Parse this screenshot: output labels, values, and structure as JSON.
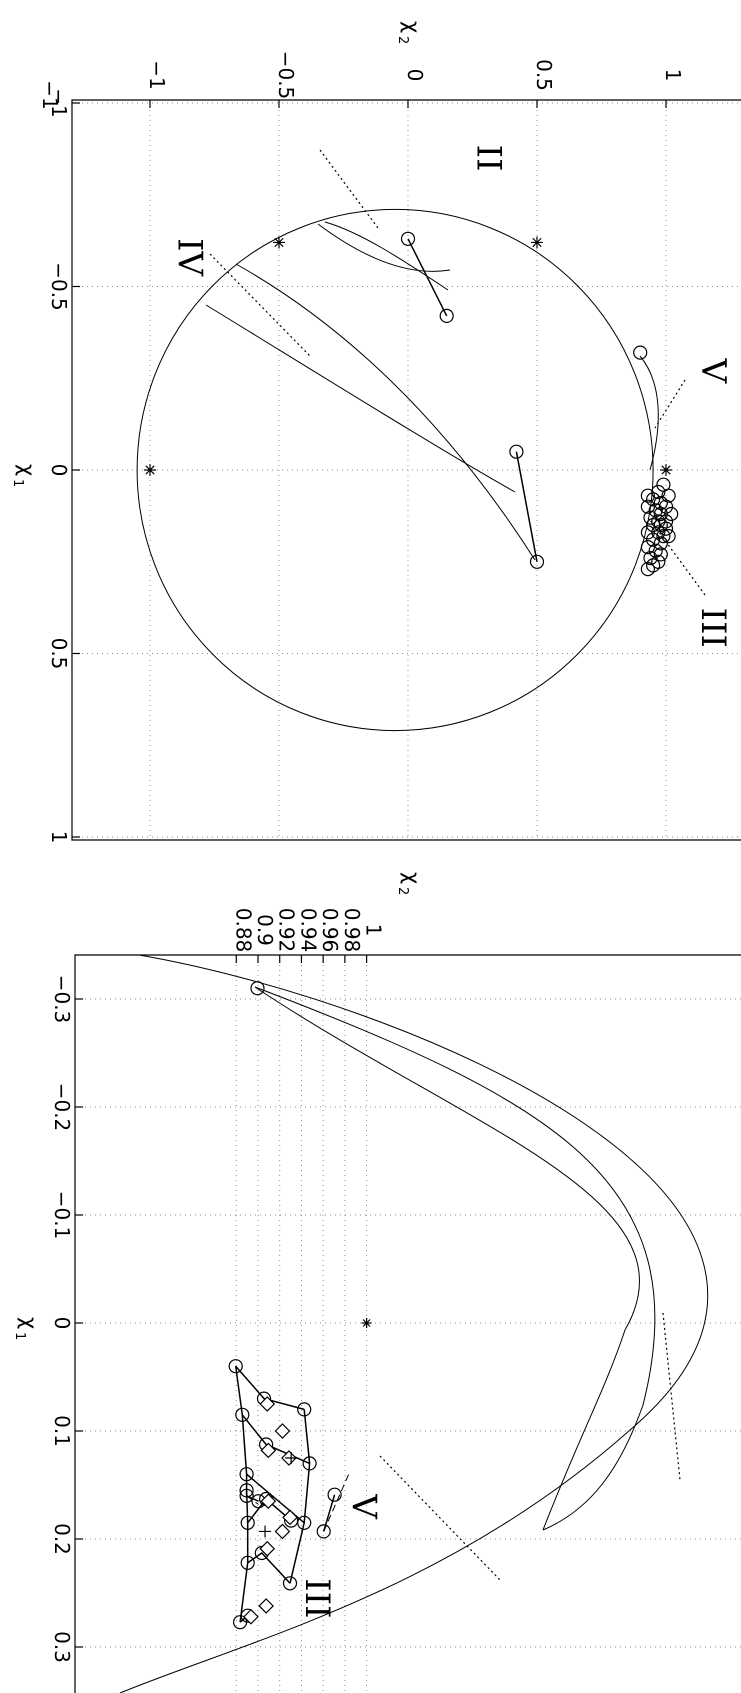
{
  "chart_data": [
    {
      "type": "line",
      "title": "",
      "xlabel_main": "χ",
      "xlabel_sub": "1",
      "ylabel_main": "χ",
      "ylabel_sub": "2",
      "xlim": [
        -1,
        1
      ],
      "ylim": [
        -1.2,
        1.3
      ],
      "x_ticks": [
        -1,
        -0.5,
        0,
        0.5,
        1
      ],
      "x_tick_labels": [
        "−1",
        "−0.5",
        "0",
        "0.5",
        "1"
      ],
      "y_ticks": [
        -1,
        -0.5,
        0,
        0.5,
        1
      ],
      "y_tick_labels": [
        "−1",
        "−0.5",
        "0",
        "0.5",
        "1"
      ],
      "y_axis_end_label": "−1",
      "grid": true,
      "circle": {
        "center": [
          0,
          -0.05
        ],
        "radius": 0.71
      },
      "star_points": [
        [
          -0.62,
          0.5
        ],
        [
          -0.62,
          -0.5
        ],
        [
          0,
          -1
        ],
        [
          0,
          1
        ]
      ],
      "annotations": [
        {
          "label": "II",
          "x": -0.85,
          "y": 0.27
        },
        {
          "label": "IV",
          "x": -0.58,
          "y": -0.89
        },
        {
          "label": "V",
          "x": -0.27,
          "y": 1.14
        },
        {
          "label": "III",
          "x": 0.43,
          "y": 1.14
        }
      ],
      "series": [
        {
          "values": [
            [
              -0.63,
              0.0
            ],
            [
              -0.42,
              0.15
            ]
          ]
        },
        {
          "values": [
            [
              -0.05,
              0.42
            ],
            [
              0.25,
              0.5
            ]
          ]
        },
        {
          "values": [
            [
              -0.32,
              0.9
            ]
          ]
        },
        {
          "values": [
            [
              0.04,
              0.99
            ],
            [
              0.06,
              0.97
            ],
            [
              0.07,
              0.93
            ],
            [
              0.07,
              1.01
            ],
            [
              0.08,
              0.95
            ],
            [
              0.09,
              0.98
            ],
            [
              0.1,
              0.93
            ],
            [
              0.1,
              1.0
            ],
            [
              0.11,
              0.96
            ],
            [
              0.12,
              0.98
            ],
            [
              0.12,
              1.02
            ],
            [
              0.13,
              0.94
            ],
            [
              0.14,
              0.97
            ],
            [
              0.14,
              1.0
            ],
            [
              0.15,
              0.95
            ],
            [
              0.15,
              0.98
            ],
            [
              0.16,
              1.0
            ],
            [
              0.17,
              0.93
            ],
            [
              0.17,
              0.97
            ],
            [
              0.18,
              0.99
            ],
            [
              0.18,
              1.01
            ],
            [
              0.19,
              0.95
            ],
            [
              0.2,
              0.98
            ],
            [
              0.21,
              0.93
            ],
            [
              0.22,
              0.96
            ],
            [
              0.23,
              0.98
            ],
            [
              0.24,
              0.94
            ],
            [
              0.25,
              0.97
            ],
            [
              0.26,
              0.95
            ],
            [
              0.27,
              0.93
            ]
          ]
        }
      ]
    },
    {
      "type": "line",
      "title": "",
      "xlabel_main": "χ",
      "xlabel_sub": "1",
      "ylabel_main": "χ",
      "ylabel_sub": "2",
      "xlim": [
        -0.34,
        0.34
      ],
      "ylim": [
        0.8765,
        1.002
      ],
      "x_ticks": [
        -0.3,
        -0.2,
        -0.1,
        0,
        0.1,
        0.2,
        0.3
      ],
      "x_tick_labels": [
        "−0.3",
        "−0.2",
        "−0.1",
        "0",
        "0.1",
        "0.2",
        "0.3"
      ],
      "y_ticks": [
        0.88,
        0.9,
        0.92,
        0.94,
        0.96,
        0.98,
        1
      ],
      "y_tick_labels": [
        "0.88",
        "0.9",
        "0.92",
        "0.94",
        "0.96",
        "0.98",
        "1"
      ],
      "grid": true,
      "annotations": [
        {
          "label": "V",
          "x": 0.17,
          "y": 0.987
        },
        {
          "label": "III",
          "x": 0.255,
          "y": 0.944
        }
      ],
      "series": [
        {
          "values": [
            [
              0.04,
              0.8795
            ],
            [
              0.07,
              0.9055
            ],
            [
              0.08,
              0.9425
            ]
          ]
        },
        {
          "values": [
            [
              0.085,
              0.8855
            ],
            [
              0.1125,
              0.9075
            ],
            [
              0.13,
              0.9475
            ]
          ]
        },
        {
          "values": [
            [
              0.14,
              0.8895
            ],
            [
              0.185,
              0.9425
            ]
          ]
        },
        {
          "values": [
            [
              0.155,
              0.8895
            ],
            [
              0.16,
              0.8895
            ],
            [
              0.165,
              0.9005
            ]
          ]
        },
        {
          "values": [
            [
              0.185,
              0.8905
            ],
            [
              0.163,
              0.9075
            ],
            [
              0.183,
              0.9305
            ]
          ]
        },
        {
          "values": [
            [
              0.222,
              0.8905
            ],
            [
              0.213,
              0.9035
            ],
            [
              0.241,
              0.9295
            ]
          ]
        },
        {
          "values": [
            [
              0.277,
              0.8835
            ],
            [
              0.271,
              0.8905
            ]
          ]
        },
        {
          "values": [
            [
              0.193,
              0.9605
            ],
            [
              0.159,
              0.9705
            ]
          ]
        },
        {
          "values": [
            [
              -0.31,
              0.8995
            ]
          ]
        }
      ],
      "diamonds": [
        [
          0.075,
          0.9085
        ],
        [
          0.1,
          0.9225
        ],
        [
          0.118,
          0.9095
        ],
        [
          0.125,
          0.9285
        ],
        [
          0.165,
          0.9095
        ],
        [
          0.18,
          0.9295
        ],
        [
          0.193,
          0.9225
        ],
        [
          0.209,
          0.9085
        ],
        [
          0.262,
          0.9075
        ],
        [
          0.272,
          0.8935
        ]
      ],
      "plus_marks": [
        [
          0.125,
          0.9305
        ],
        [
          0.193,
          0.9065
        ]
      ],
      "star_points": [
        [
          0,
          1
        ]
      ]
    }
  ]
}
